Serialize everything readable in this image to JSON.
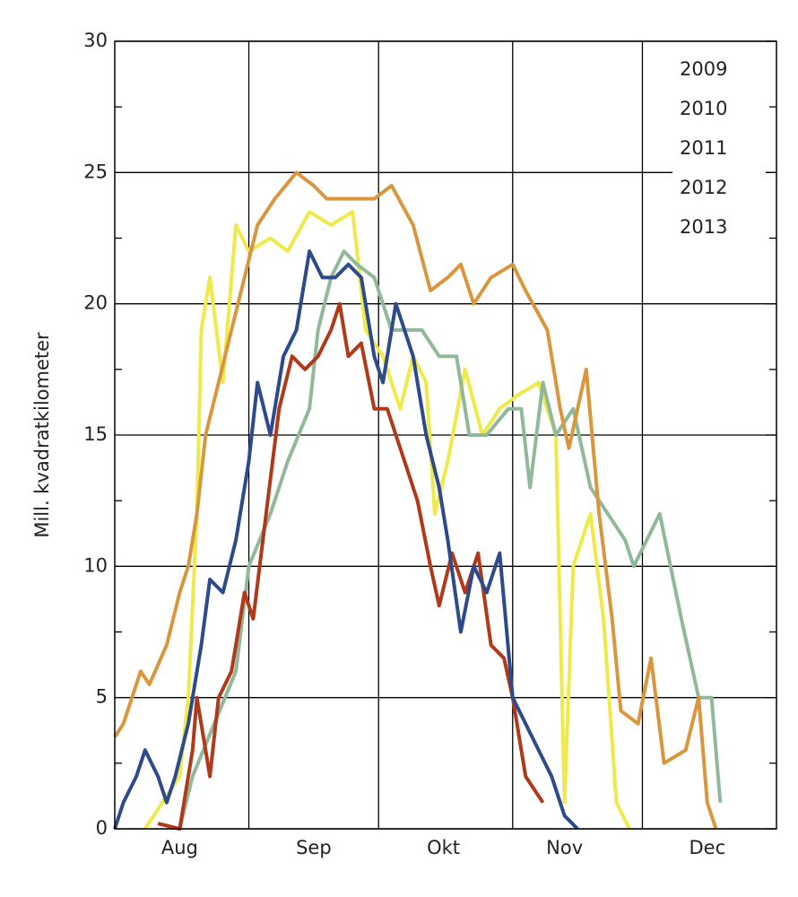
{
  "chart_data": {
    "type": "line",
    "y_label": "Mill. kvadratkilometer",
    "xlim": [
      0,
      153
    ],
    "xticks": [
      {
        "value": 15,
        "label": "Aug"
      },
      {
        "value": 46,
        "label": "Sep"
      },
      {
        "value": 76,
        "label": "Okt"
      },
      {
        "value": 104,
        "label": "Nov"
      },
      {
        "value": 137,
        "label": "Dec"
      }
    ],
    "xgrid": [
      31,
      61,
      92,
      122
    ],
    "ylim": [
      0,
      30
    ],
    "yticks": [
      0,
      5,
      10,
      15,
      20,
      25,
      30
    ],
    "yminorticks": [
      2.5,
      7.5,
      12.5,
      17.5,
      22.5,
      27.5
    ],
    "grid": true,
    "legend": "top-right",
    "series": [
      {
        "name": "2009",
        "color": "#eeea4a",
        "x": [
          7,
          11,
          15,
          17,
          19,
          20,
          22,
          25,
          28,
          31,
          36,
          40,
          45,
          50,
          55,
          58,
          62,
          66,
          69,
          72,
          74,
          77,
          81,
          85,
          89,
          93,
          98,
          102,
          104,
          106,
          110,
          113,
          116,
          119
        ],
        "values": [
          0,
          1,
          2,
          5,
          12,
          19,
          21,
          17,
          23,
          22,
          22.5,
          22,
          23.5,
          23,
          23.5,
          19,
          18,
          16,
          18,
          17,
          12,
          14,
          17.5,
          15,
          16,
          16.5,
          17,
          15,
          1,
          10,
          12,
          8,
          1,
          0
        ]
      },
      {
        "name": "2010",
        "color": "#92b89a",
        "x": [
          15,
          18,
          23,
          28,
          31,
          36,
          40,
          45,
          47,
          50,
          53,
          56,
          60,
          64,
          71,
          75,
          79,
          82,
          86,
          91,
          94,
          96,
          99,
          102,
          106,
          110,
          114,
          118,
          120,
          123,
          126,
          131,
          135,
          138,
          140
        ],
        "values": [
          0,
          2,
          4,
          6,
          10,
          12,
          14,
          16,
          19,
          21,
          22,
          21.5,
          21,
          19,
          19,
          18,
          18,
          15,
          15,
          16,
          16,
          13,
          17,
          15,
          16,
          13,
          12,
          11,
          10,
          11,
          12,
          8,
          5,
          5,
          1
        ]
      },
      {
        "name": "2011",
        "color": "#d9963c",
        "x": [
          0,
          2,
          6,
          8,
          12,
          15,
          17,
          19,
          21,
          24,
          27,
          30,
          33,
          37,
          42,
          46,
          49,
          52,
          56,
          60,
          64,
          69,
          73,
          77,
          80,
          83,
          87,
          92,
          95,
          100,
          103,
          105,
          109,
          112,
          115,
          117,
          121,
          124,
          127,
          132,
          135,
          137,
          139
        ],
        "values": [
          3.5,
          4,
          6,
          5.5,
          7,
          9,
          10,
          12,
          15,
          17,
          19,
          21,
          23,
          24,
          25,
          24.5,
          24,
          24,
          24,
          24,
          24.5,
          23,
          20.5,
          21,
          21.5,
          20,
          21,
          21.5,
          20.5,
          19,
          16,
          14.5,
          17.5,
          12,
          8,
          4.5,
          4,
          6.5,
          2.5,
          3,
          5,
          1,
          0
        ]
      },
      {
        "name": "2012",
        "color": "#b0391a",
        "x": [
          10,
          15,
          18,
          19,
          22,
          24,
          27,
          30,
          32,
          35,
          38,
          41,
          44,
          47,
          50,
          52,
          54,
          57,
          60,
          63,
          67,
          70,
          73,
          75,
          78,
          81,
          84,
          87,
          90,
          92,
          95,
          99
        ],
        "values": [
          0.2,
          0,
          3,
          5,
          2,
          5,
          6,
          9,
          8,
          12,
          16,
          18,
          17.5,
          18,
          19,
          20,
          18,
          18.5,
          16,
          16,
          14,
          12.5,
          10,
          8.5,
          10.5,
          9,
          10.5,
          7,
          6.5,
          5,
          2,
          1
        ]
      },
      {
        "name": "2013",
        "color": "#2d4a8c",
        "x": [
          0,
          2,
          5,
          7,
          10,
          12,
          14,
          17,
          20,
          22,
          25,
          28,
          31,
          33,
          36,
          39,
          42,
          45,
          48,
          51,
          54,
          57,
          60,
          62,
          65,
          69,
          72,
          75,
          77,
          80,
          83,
          86,
          89,
          92,
          95,
          98,
          101,
          104,
          107
        ],
        "values": [
          0,
          1,
          2,
          3,
          2,
          1,
          2,
          4,
          7,
          9.5,
          9,
          11,
          14,
          17,
          15,
          18,
          19,
          22,
          21,
          21,
          21.5,
          21,
          18,
          17,
          20,
          18,
          15,
          13,
          11,
          7.5,
          10,
          9,
          10.5,
          5,
          4,
          3,
          2,
          0.5,
          0
        ]
      }
    ]
  }
}
